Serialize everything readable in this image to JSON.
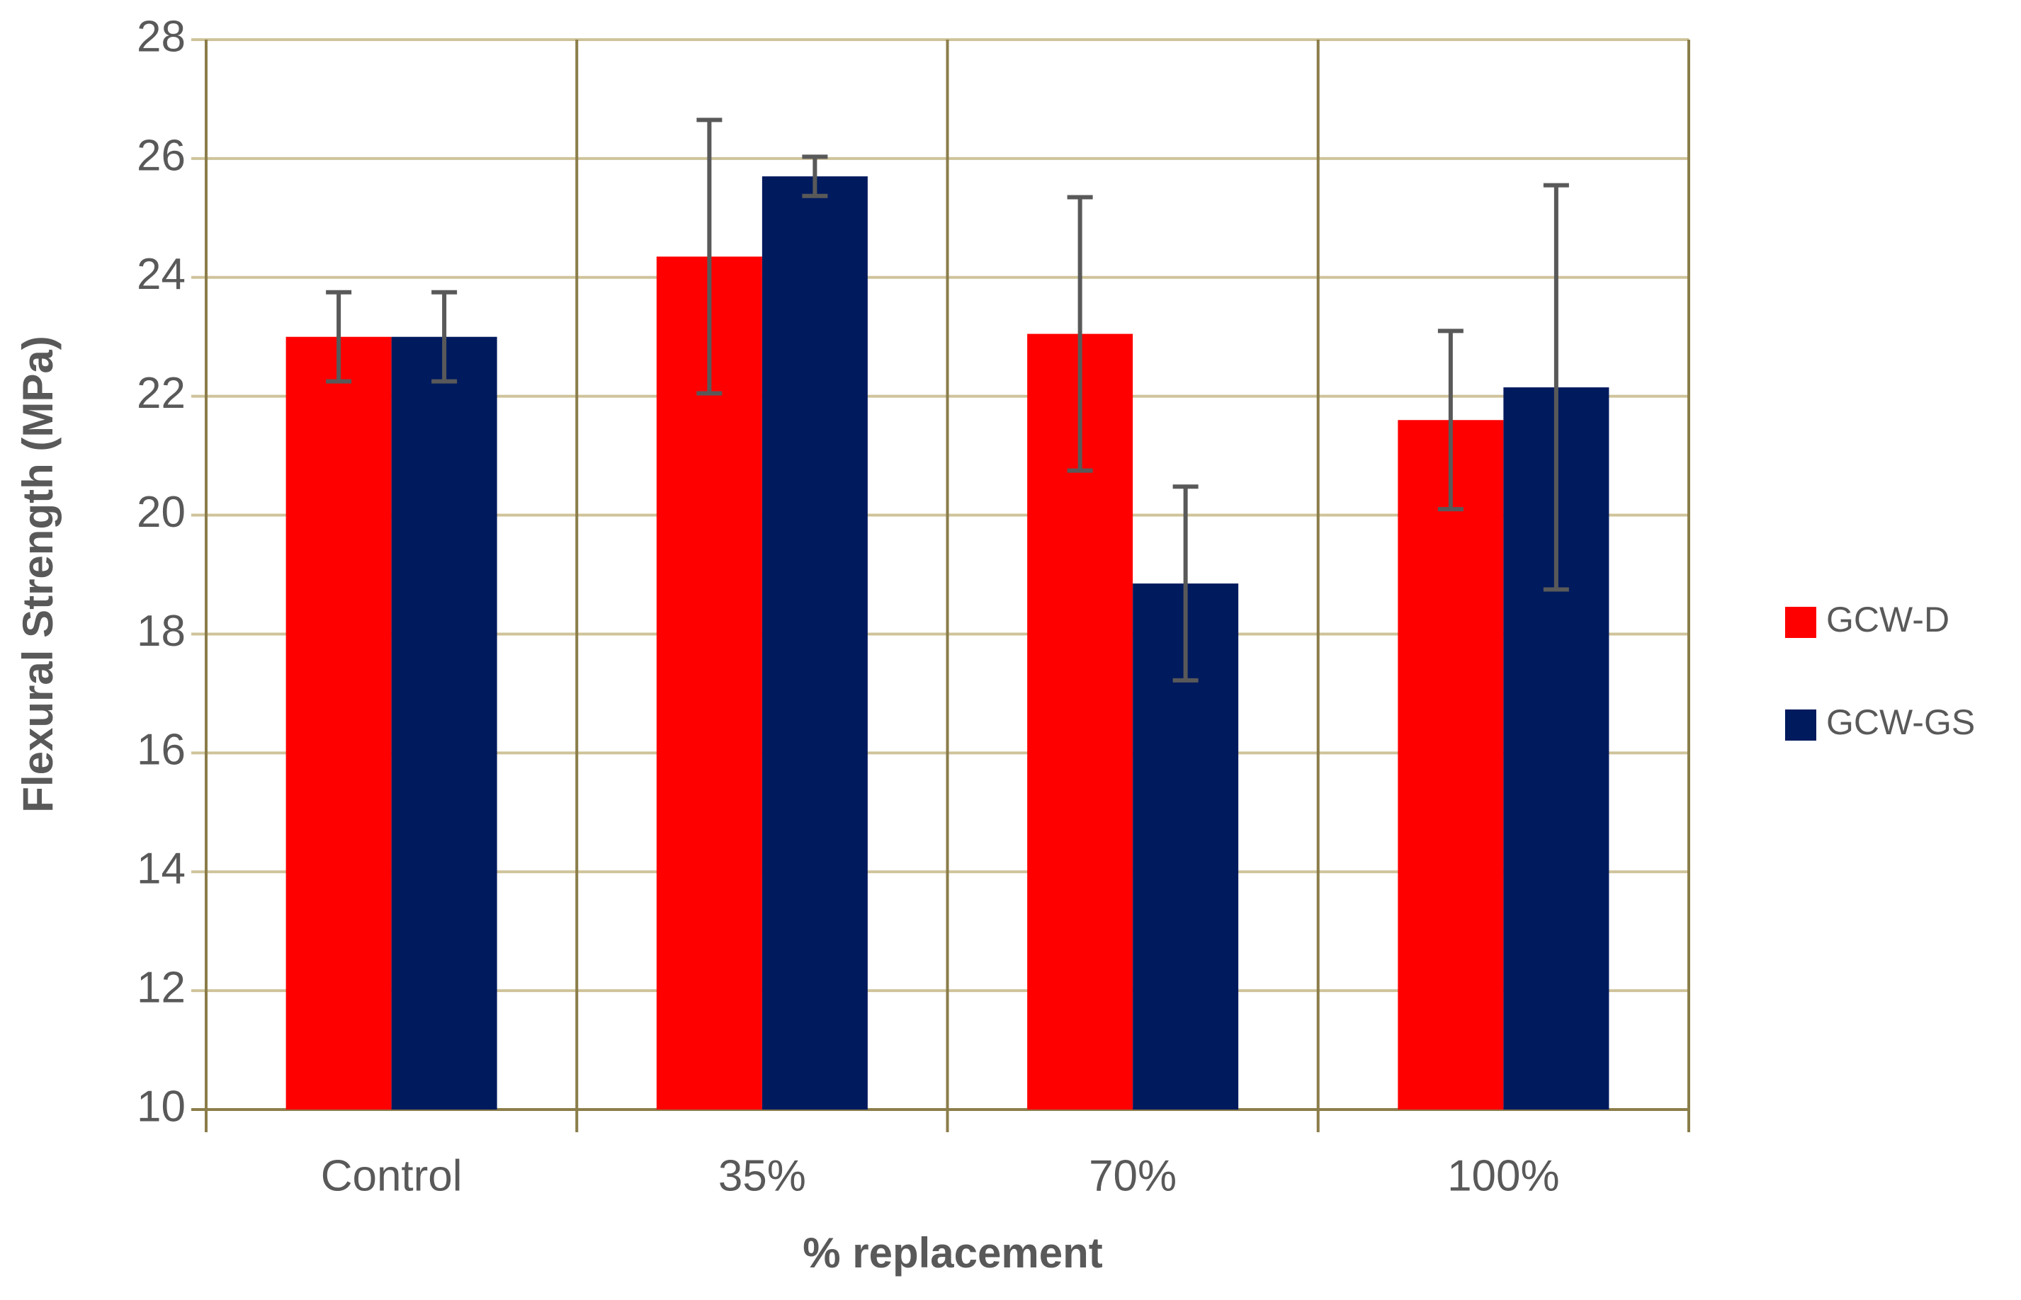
{
  "chart_data": {
    "type": "bar",
    "x_label": "% replacement",
    "y_label": "Flexural Strength (MPa)",
    "categories": [
      "Control",
      "35%",
      "70%",
      "100%"
    ],
    "series": [
      {
        "name": "GCW-D",
        "color": "#ff0000",
        "values": [
          23.0,
          24.35,
          23.05,
          21.6
        ],
        "errors": [
          0.75,
          2.3,
          2.3,
          1.5
        ]
      },
      {
        "name": "GCW-GS",
        "color": "#001a5e",
        "values": [
          23.0,
          25.7,
          18.85,
          22.15
        ],
        "errors": [
          0.75,
          0.33,
          1.63,
          3.4
        ]
      }
    ],
    "ylim": [
      10,
      28
    ],
    "yticks": [
      10,
      12,
      14,
      16,
      18,
      20,
      22,
      24,
      26,
      28
    ],
    "grid": true,
    "legend": "right"
  }
}
